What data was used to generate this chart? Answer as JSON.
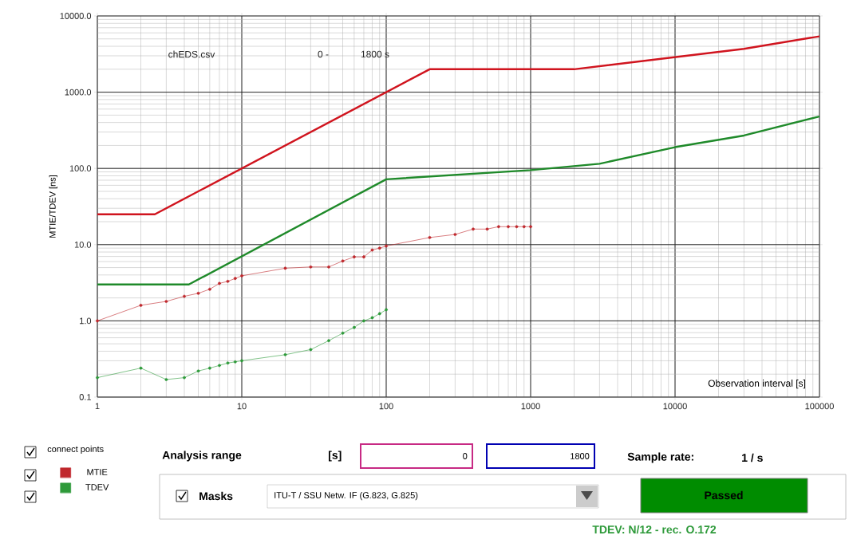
{
  "chart_data": {
    "type": "line",
    "xlabel": "Observation interval  [s]",
    "ylabel": "MTIE/TDEV [ns]",
    "xlim": [
      1,
      100000
    ],
    "ylim": [
      0.1,
      10000
    ],
    "xticks": [
      1,
      10,
      100,
      1000,
      10000,
      100000
    ],
    "yticks": [
      {
        "value": 0.1,
        "label": "0.1"
      },
      {
        "value": 1,
        "label": "1.0"
      },
      {
        "value": 10,
        "label": "10.0"
      },
      {
        "value": 100,
        "label": "100.0"
      },
      {
        "value": 1000,
        "label": "1000.0"
      },
      {
        "value": 10000,
        "label": "10000.0"
      }
    ],
    "log": "xy",
    "grid": true,
    "legend": "bottom left",
    "line_style": "solid",
    "series": [
      {
        "color": "#d0141e",
        "marker": "none",
        "x": [
          1,
          2.5,
          200,
          2000,
          30000,
          100000
        ],
        "values": [
          25,
          25,
          2000,
          2000,
          3700,
          5400
        ]
      },
      {
        "color": "#1f8a2a",
        "marker": "none",
        "x": [
          1,
          4.3,
          100,
          1000,
          3000,
          10000,
          30000,
          100000
        ],
        "values": [
          3,
          3,
          72,
          95,
          115,
          190,
          270,
          480
        ]
      },
      {
        "name": "MTIE",
        "color": "#c0282d",
        "marker": "circle",
        "x": [
          1,
          2,
          3,
          4,
          5,
          6,
          7,
          8,
          9,
          10,
          20,
          30,
          40,
          50,
          60,
          70,
          80,
          90,
          100,
          200,
          300,
          400,
          500,
          600,
          700,
          800,
          900,
          1000
        ],
        "values": [
          1.0,
          1.6,
          1.8,
          2.1,
          2.3,
          2.6,
          3.1,
          3.3,
          3.6,
          3.9,
          4.9,
          5.1,
          5.1,
          6.1,
          6.9,
          6.9,
          8.5,
          9.0,
          9.6,
          12.4,
          13.6,
          16,
          16,
          17.2,
          17.2,
          17.2,
          17.2,
          17.2
        ]
      },
      {
        "name": "TDEV",
        "color": "#2e9a3a",
        "marker": "circle",
        "x": [
          1,
          2,
          3,
          4,
          5,
          6,
          7,
          8,
          9,
          10,
          20,
          30,
          40,
          50,
          60,
          70,
          80,
          90,
          100
        ],
        "values": [
          0.18,
          0.24,
          0.17,
          0.18,
          0.22,
          0.24,
          0.26,
          0.28,
          0.29,
          0.3,
          0.36,
          0.42,
          0.55,
          0.69,
          0.82,
          1.0,
          1.1,
          1.24,
          1.4
        ]
      }
    ],
    "annotations": [
      "chEDS.csv",
      "0 -",
      "1800 s",
      "connect points",
      "Analysis range",
      "[s]",
      "0",
      "1800",
      "Sample rate:",
      "1 / s",
      "Masks",
      "ITU-T / SSU Netw. IF (G.823, G.825)",
      "Passed",
      "TDEV: N/12 - rec. O.172"
    ]
  }
}
